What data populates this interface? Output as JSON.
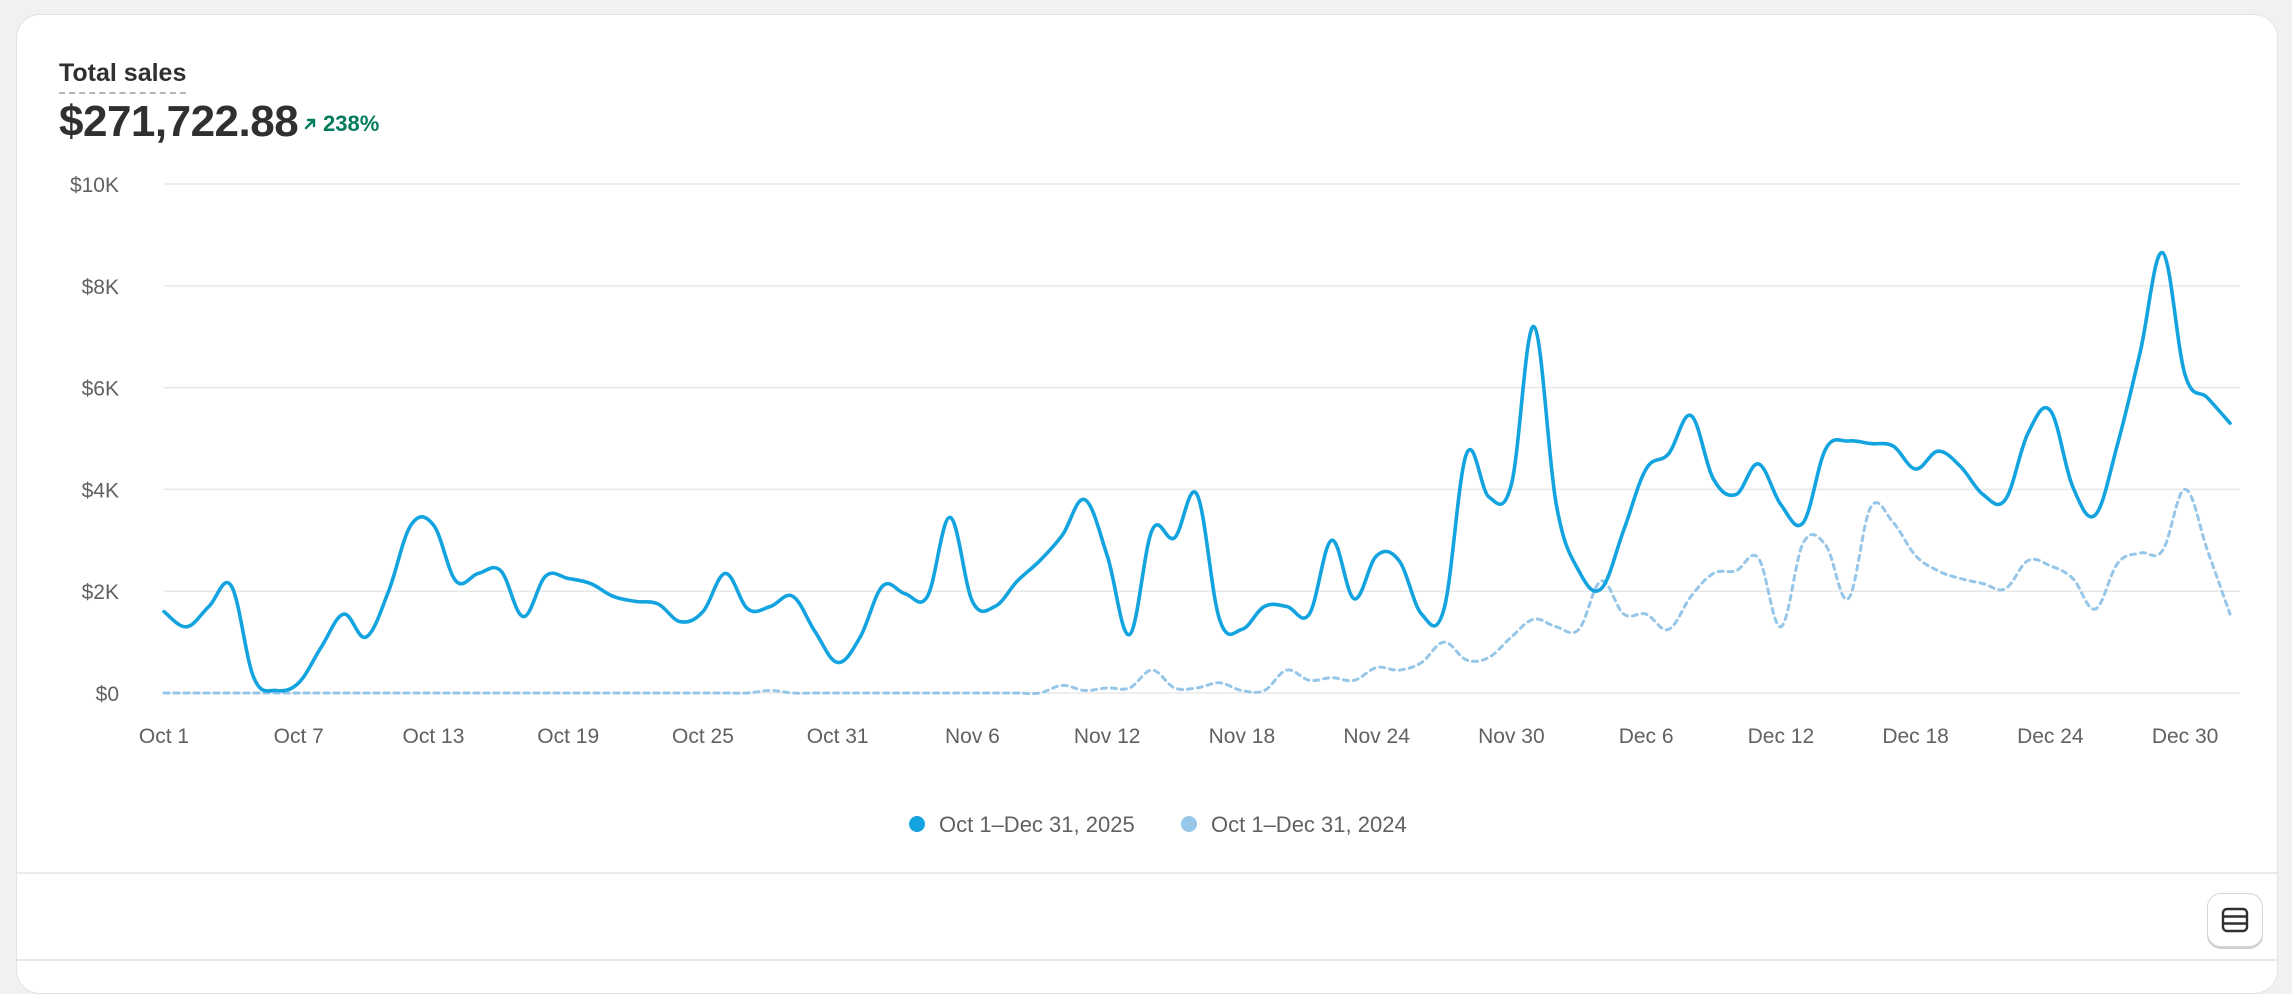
{
  "metric": {
    "label": "Total sales",
    "value": "$271,722.88",
    "change": "238%",
    "change_direction": "up",
    "change_color": "#047b5d"
  },
  "table_toggle": {
    "icon": "table-icon"
  },
  "chart_data": {
    "type": "line",
    "title": "",
    "xlabel": "",
    "ylabel": "",
    "ylim": [
      0,
      10000
    ],
    "y_ticks": [
      {
        "value": 0,
        "label": "$0"
      },
      {
        "value": 2000,
        "label": "$2K"
      },
      {
        "value": 4000,
        "label": "$4K"
      },
      {
        "value": 6000,
        "label": "$6K"
      },
      {
        "value": 8000,
        "label": "$8K"
      },
      {
        "value": 10000,
        "label": "$10K"
      }
    ],
    "x_ticks": [
      {
        "index": 0,
        "label": "Oct 1"
      },
      {
        "index": 6,
        "label": "Oct 7"
      },
      {
        "index": 12,
        "label": "Oct 13"
      },
      {
        "index": 18,
        "label": "Oct 19"
      },
      {
        "index": 24,
        "label": "Oct 25"
      },
      {
        "index": 30,
        "label": "Oct 31"
      },
      {
        "index": 36,
        "label": "Nov 6"
      },
      {
        "index": 42,
        "label": "Nov 12"
      },
      {
        "index": 48,
        "label": "Nov 18"
      },
      {
        "index": 54,
        "label": "Nov 24"
      },
      {
        "index": 60,
        "label": "Nov 30"
      },
      {
        "index": 66,
        "label": "Dec 6"
      },
      {
        "index": 72,
        "label": "Dec 12"
      },
      {
        "index": 78,
        "label": "Dec 18"
      },
      {
        "index": 84,
        "label": "Dec 24"
      },
      {
        "index": 90,
        "label": "Dec 30"
      }
    ],
    "grid": true,
    "legend_position": "bottom-center",
    "series": [
      {
        "name": "Oct 1–Dec 31, 2025",
        "color": "#13a4e0",
        "style": "solid",
        "values": [
          1600,
          1300,
          1700,
          2100,
          300,
          50,
          200,
          900,
          1550,
          1100,
          2000,
          3300,
          3300,
          2200,
          2350,
          2400,
          1500,
          2300,
          2250,
          2150,
          1900,
          1800,
          1750,
          1400,
          1600,
          2350,
          1650,
          1700,
          1900,
          1200,
          600,
          1100,
          2100,
          1950,
          1900,
          3450,
          1800,
          1700,
          2200,
          2600,
          3100,
          3800,
          2700,
          1150,
          3200,
          3050,
          3900,
          1450,
          1250,
          1700,
          1700,
          1550,
          3000,
          1850,
          2700,
          2600,
          1550,
          1650,
          4700,
          3850,
          4100,
          7200,
          3700,
          2400,
          2050,
          3200,
          4400,
          4700,
          5450,
          4200,
          3900,
          4500,
          3700,
          3350,
          4800,
          4950,
          4900,
          4850,
          4400,
          4750,
          4450,
          3900,
          3800,
          5100,
          5550,
          4050,
          3500,
          4900,
          6700,
          8650,
          6250,
          5800,
          5300
        ]
      },
      {
        "name": "Oct 1–Dec 31, 2024",
        "color": "#96c6e8",
        "style": "dashed",
        "values": [
          0,
          0,
          0,
          0,
          0,
          0,
          0,
          0,
          0,
          0,
          0,
          0,
          0,
          0,
          0,
          0,
          0,
          0,
          0,
          0,
          0,
          0,
          0,
          0,
          0,
          0,
          0,
          50,
          0,
          0,
          0,
          0,
          0,
          0,
          0,
          0,
          0,
          0,
          0,
          0,
          150,
          50,
          100,
          100,
          450,
          100,
          100,
          200,
          50,
          50,
          450,
          250,
          300,
          250,
          500,
          450,
          600,
          1000,
          650,
          700,
          1100,
          1450,
          1300,
          1250,
          2200,
          1550,
          1550,
          1250,
          1900,
          2350,
          2400,
          2650,
          1300,
          2950,
          2900,
          1850,
          3650,
          3350,
          2700,
          2400,
          2250,
          2150,
          2050,
          2600,
          2500,
          2250,
          1650,
          2550,
          2750,
          2800,
          4000,
          2800,
          1550
        ]
      }
    ]
  }
}
